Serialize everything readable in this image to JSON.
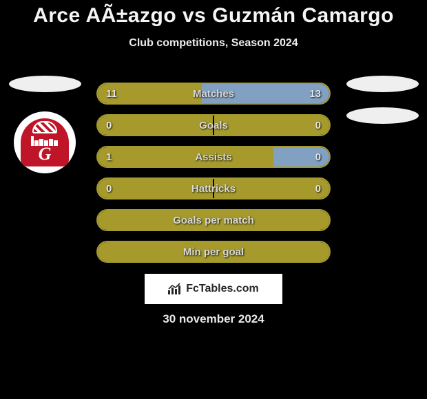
{
  "title": "Arce AÃ±azgo vs Guzmán Camargo",
  "subtitle": "Club competitions, Season 2024",
  "footer_brand": "FcTables.com",
  "footer_date": "30 november 2024",
  "colors": {
    "left_accent": "#a59a2b",
    "right_accent": "#82a0c2",
    "bar_border_default": "#a59a2b",
    "text_light": "#e5e5e5",
    "background": "#000000",
    "pill_bg": "#efefef",
    "badge_red": "#c01528"
  },
  "player_left": {
    "club_badge": "guabira",
    "has_two_pills": false
  },
  "player_right": {
    "has_two_pills": true
  },
  "stats": [
    {
      "label": "Matches",
      "left_value": "11",
      "right_value": "13",
      "left_pct": 45,
      "right_pct": 55,
      "left_color": "#a59a2b",
      "right_color": "#82a0c2",
      "border_color": "#a59a2b",
      "mid_gap": false
    },
    {
      "label": "Goals",
      "left_value": "0",
      "right_value": "0",
      "left_pct": 50,
      "right_pct": 50,
      "left_color": "#a59a2b",
      "right_color": "#a59a2b",
      "border_color": "#a59a2b",
      "mid_gap": true
    },
    {
      "label": "Assists",
      "left_value": "1",
      "right_value": "0",
      "left_pct": 76,
      "right_pct": 24,
      "left_color": "#a59a2b",
      "right_color": "#82a0c2",
      "border_color": "#a59a2b",
      "mid_gap": false
    },
    {
      "label": "Hattricks",
      "left_value": "0",
      "right_value": "0",
      "left_pct": 50,
      "right_pct": 50,
      "left_color": "#a59a2b",
      "right_color": "#a59a2b",
      "border_color": "#a59a2b",
      "mid_gap": true
    },
    {
      "label": "Goals per match",
      "left_value": "",
      "right_value": "",
      "left_pct": 100,
      "right_pct": 0,
      "left_color": "#a59a2b",
      "right_color": "#a59a2b",
      "border_color": "#a59a2b",
      "mid_gap": false
    },
    {
      "label": "Min per goal",
      "left_value": "",
      "right_value": "",
      "left_pct": 100,
      "right_pct": 0,
      "left_color": "#a59a2b",
      "right_color": "#a59a2b",
      "border_color": "#a59a2b",
      "mid_gap": false
    }
  ]
}
